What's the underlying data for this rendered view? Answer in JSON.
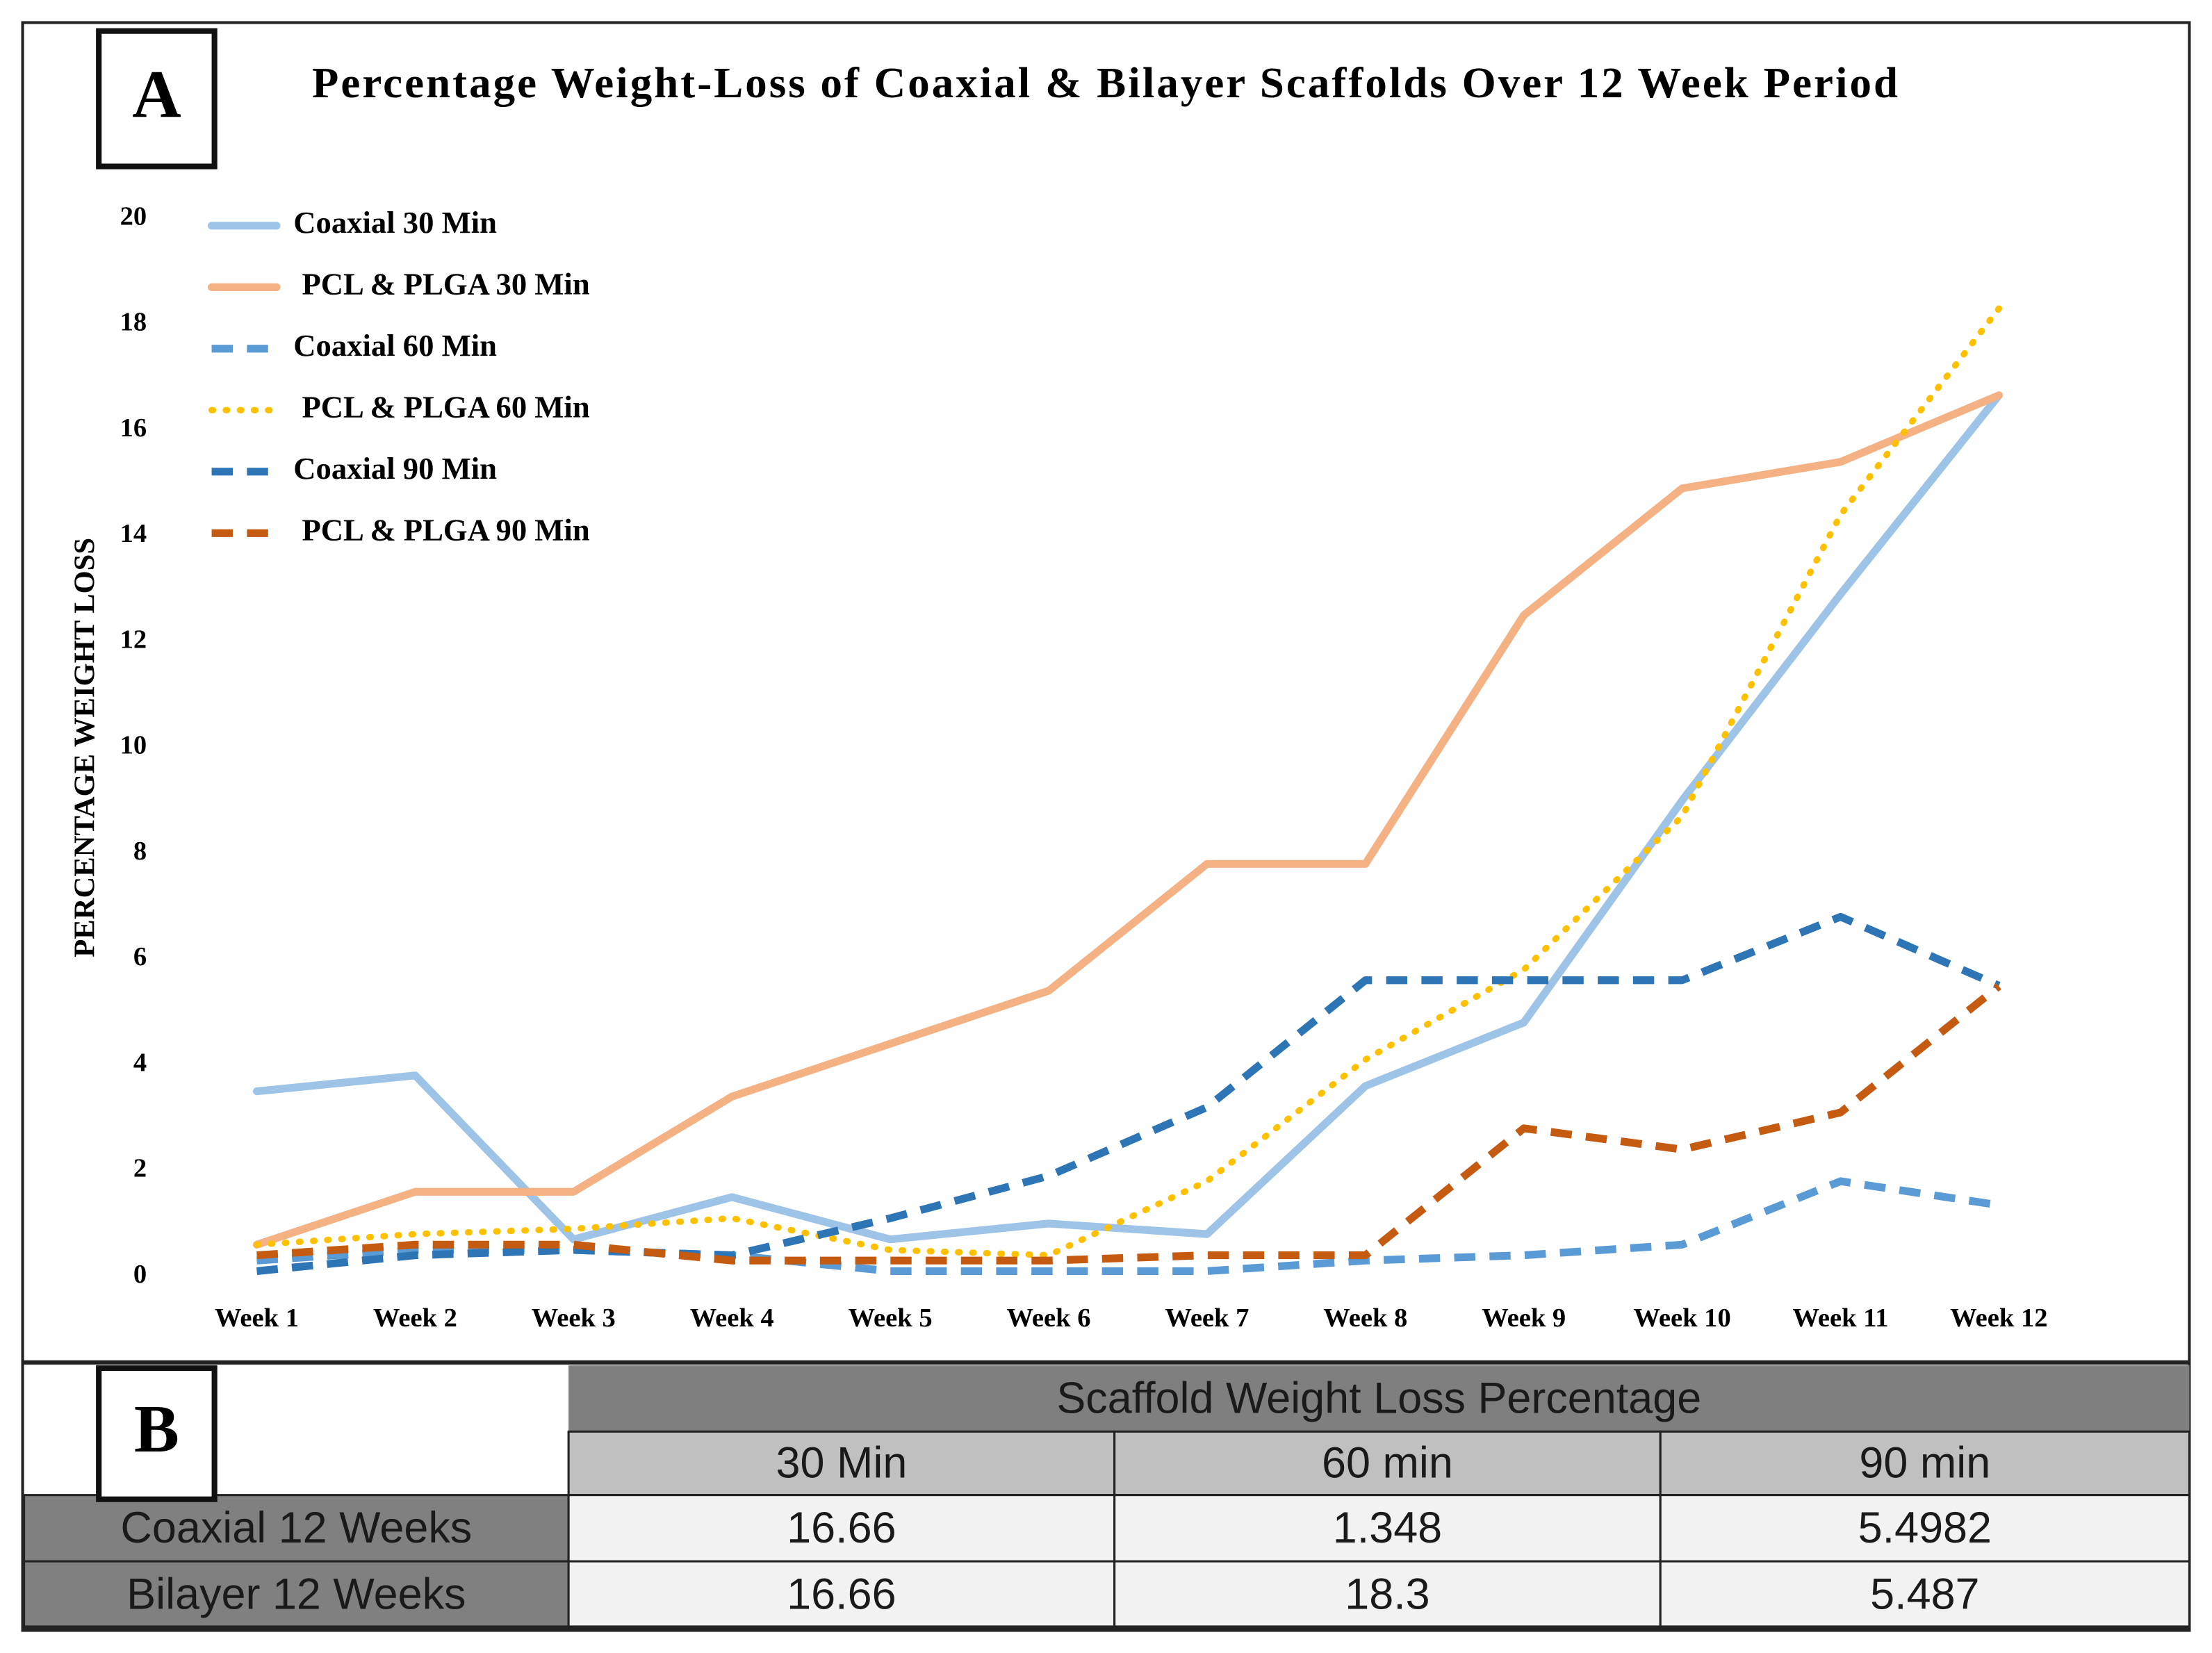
{
  "panel_labels": {
    "a": "A",
    "b": "B"
  },
  "chart_data": {
    "type": "line",
    "title": "Percentage Weight-Loss of Coaxial & Bilayer Scaffolds Over 12 Week Period",
    "y_label": "PERCENTAGE WEIGHT LOSS",
    "categories": [
      "Week 1",
      "Week 2",
      "Week 3",
      "Week 4",
      "Week 5",
      "Week 6",
      "Week 7",
      "Week 8",
      "Week 9",
      "Week 10",
      "Week 11",
      "Week 12"
    ],
    "ylim": [
      0,
      20
    ],
    "yticks": [
      0,
      2,
      4,
      6,
      8,
      10,
      12,
      14,
      16,
      18,
      20
    ],
    "grid": false,
    "legend": "top-left",
    "series": [
      {
        "name": "Coaxial 30 Min",
        "color": "#9dc3e6",
        "style": "solid",
        "values": [
          3.5,
          3.8,
          0.7,
          1.5,
          0.7,
          1.0,
          0.8,
          3.6,
          4.8,
          9.0,
          12.9,
          16.66
        ]
      },
      {
        "name": "PCL & PLGA 30 Min",
        "color": "#f4b183",
        "style": "solid",
        "values": [
          0.6,
          1.6,
          1.6,
          3.4,
          4.4,
          5.4,
          7.8,
          7.8,
          12.5,
          14.9,
          15.4,
          16.66
        ]
      },
      {
        "name": "Coaxial 60 Min",
        "color": "#5b9bd5",
        "style": "dash",
        "values": [
          0.3,
          0.5,
          0.5,
          0.4,
          0.1,
          0.1,
          0.1,
          0.3,
          0.4,
          0.6,
          1.8,
          1.348
        ]
      },
      {
        "name": "PCL & PLGA 60 Min",
        "color": "#ffc000",
        "style": "dot",
        "values": [
          0.6,
          0.8,
          0.9,
          1.1,
          0.5,
          0.4,
          1.8,
          4.1,
          5.8,
          8.7,
          14.4,
          18.3
        ]
      },
      {
        "name": "Coaxial 90 Min",
        "color": "#2e75b6",
        "style": "dash",
        "values": [
          0.1,
          0.4,
          0.5,
          0.4,
          1.1,
          1.9,
          3.2,
          5.6,
          5.6,
          5.6,
          6.8,
          5.4982
        ]
      },
      {
        "name": "PCL & PLGA 90 Min",
        "color": "#c55a11",
        "style": "dash",
        "values": [
          0.4,
          0.6,
          0.6,
          0.3,
          0.3,
          0.3,
          0.4,
          0.4,
          2.8,
          2.4,
          3.1,
          5.487
        ]
      }
    ]
  },
  "table": {
    "title": "Scaffold Weight Loss Percentage",
    "columns": [
      "30 Min",
      "60 min",
      "90 min"
    ],
    "rows": [
      {
        "label": "Coaxial 12 Weeks",
        "cells": [
          16.66,
          1.348,
          5.4982
        ]
      },
      {
        "label": "Bilayer 12 Weeks",
        "cells": [
          16.66,
          18.3,
          5.487
        ]
      }
    ]
  }
}
